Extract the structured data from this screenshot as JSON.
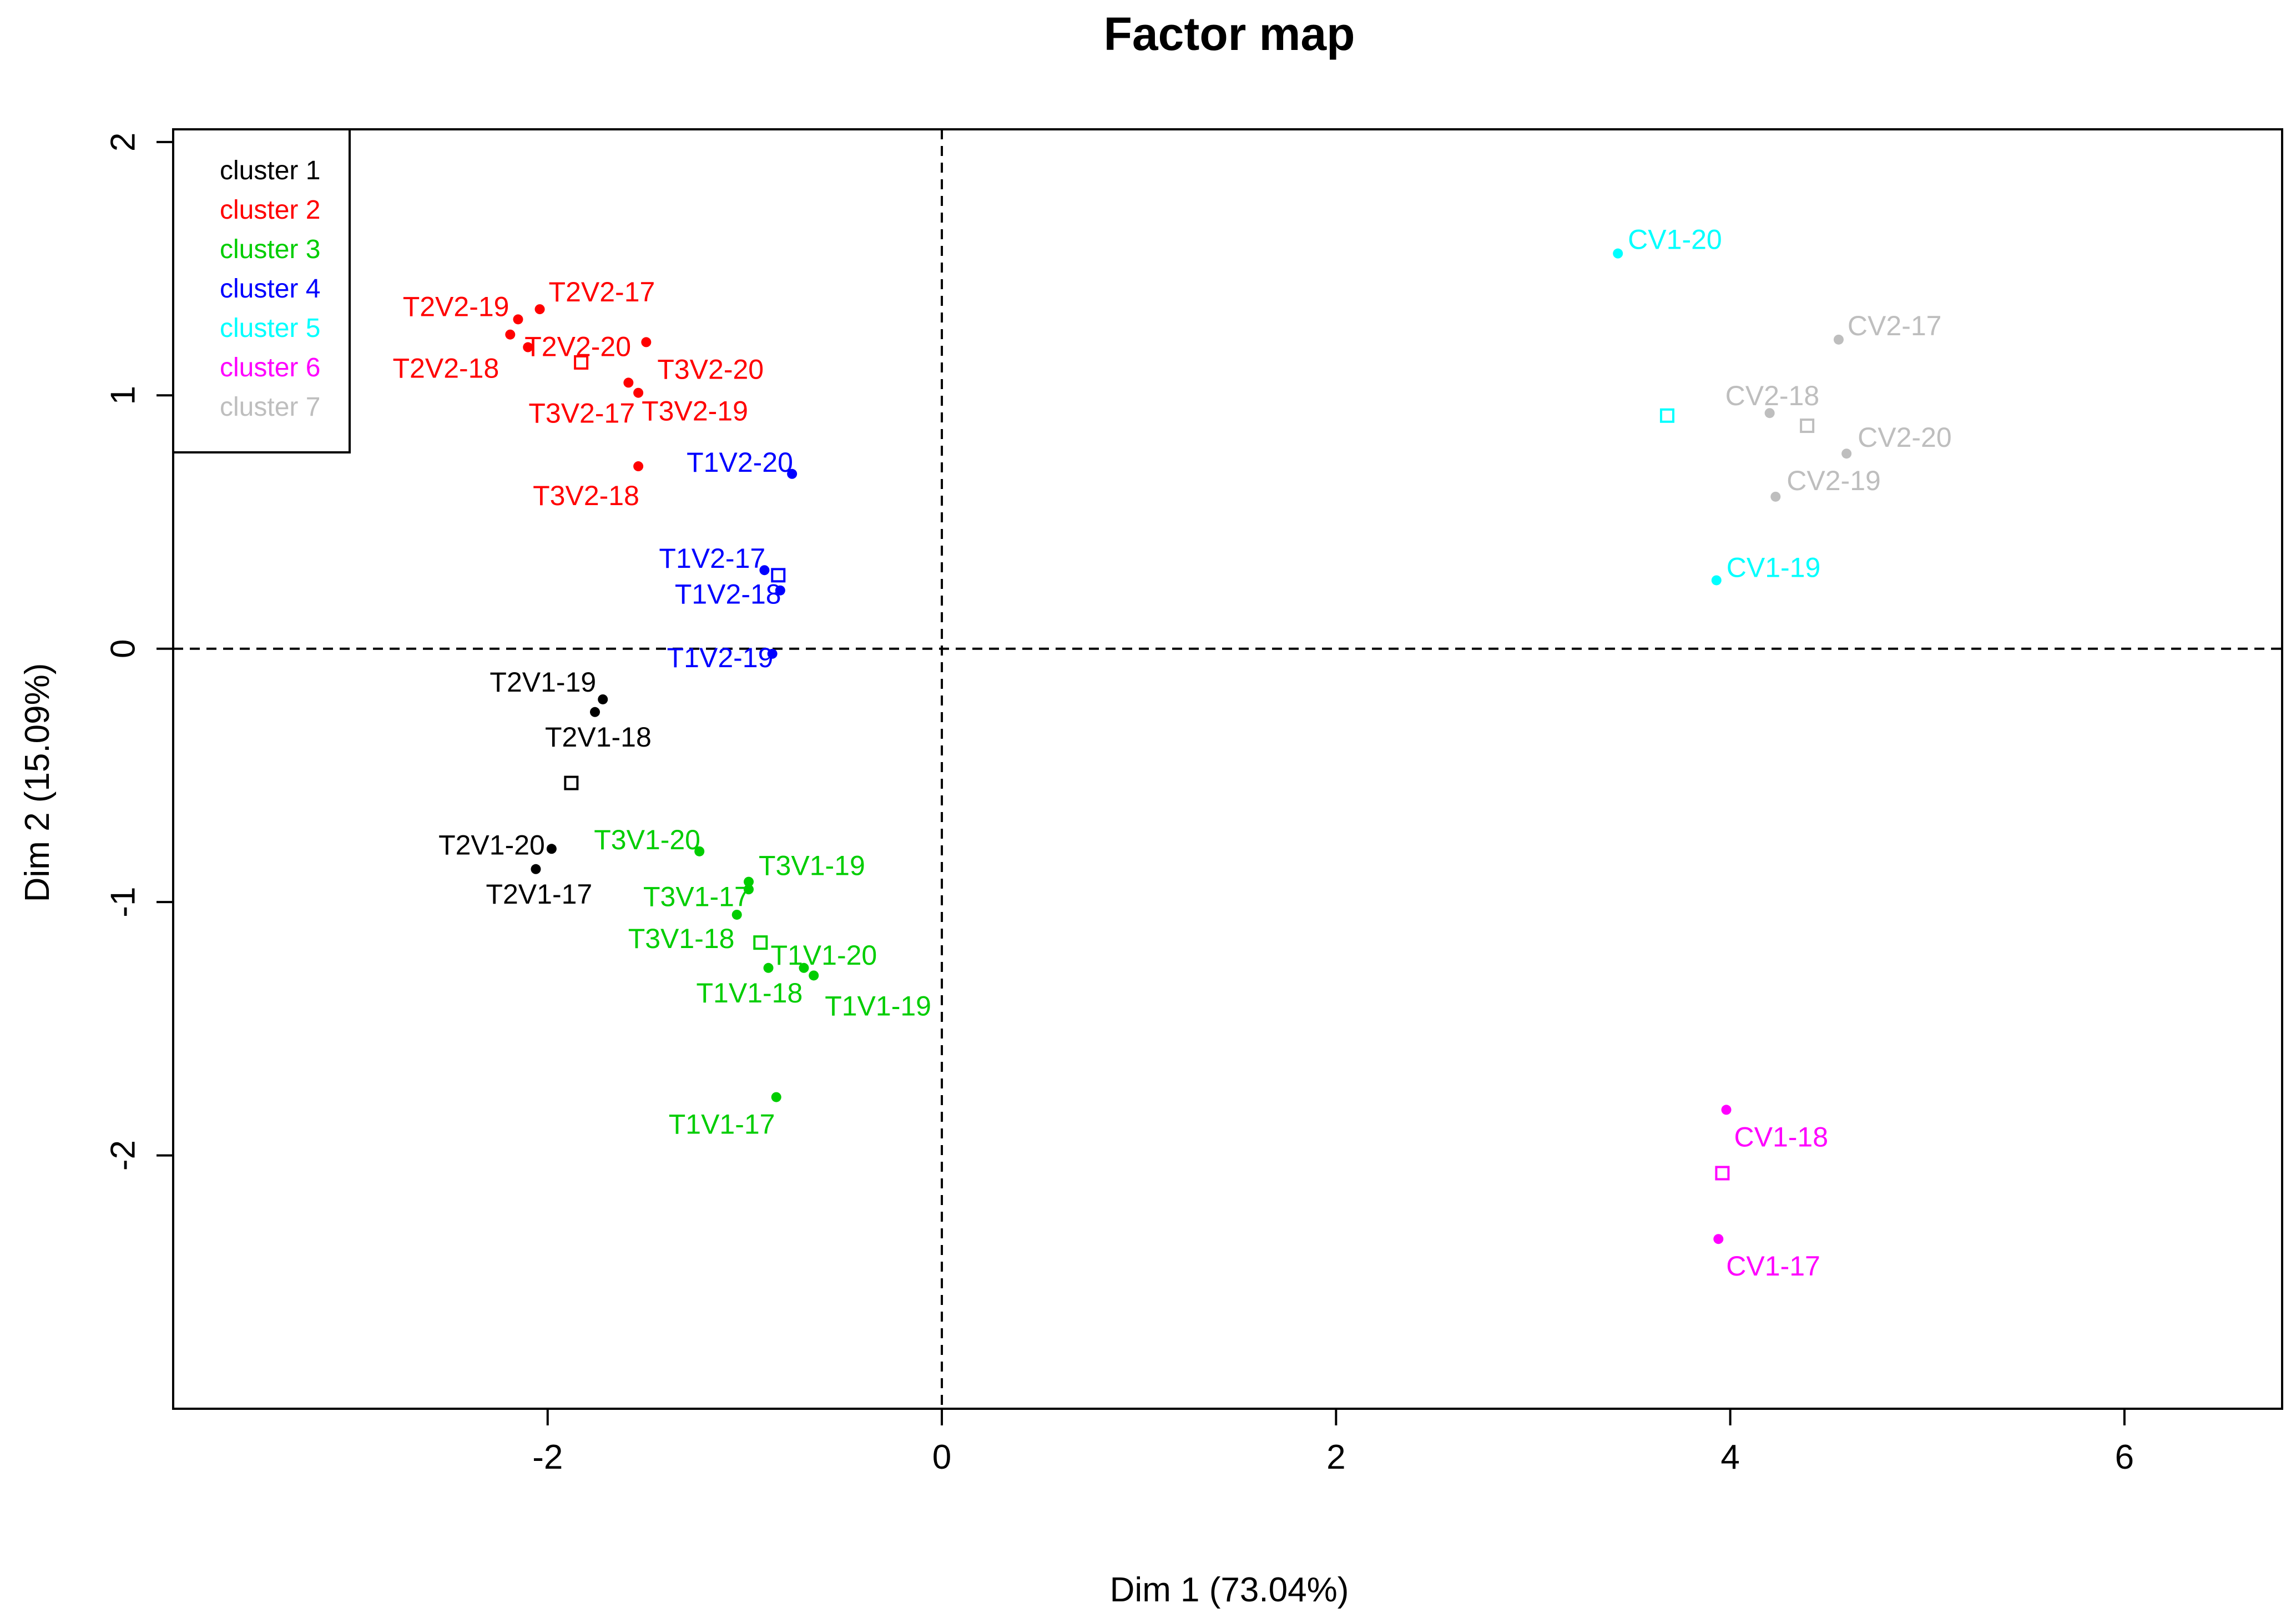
{
  "chart_data": {
    "type": "scatter",
    "title": "Factor map",
    "xlabel": "Dim 1 (73.04%)",
    "ylabel": "Dim 2 (15.09%)",
    "xlim": [
      -3.9,
      6.8
    ],
    "ylim": [
      -3.0,
      2.05
    ],
    "xticks": [
      -2,
      0,
      2,
      4,
      6
    ],
    "yticks": [
      -2,
      -1,
      0,
      1,
      2
    ],
    "xtick_labels": [
      "-2",
      "0",
      "2",
      "4",
      "6"
    ],
    "ytick_labels": [
      "-2",
      "-1",
      "0",
      "1",
      "2"
    ],
    "reference_lines": {
      "x": 0,
      "y": 0,
      "style": "dashed"
    },
    "grid": false,
    "legend_position": "top-left",
    "series": [
      {
        "name": "cluster 1",
        "color": "#000000",
        "points": [
          {
            "label": "T2V1-19",
            "x": -1.72,
            "y": -0.2
          },
          {
            "label": "T2V1-18",
            "x": -1.76,
            "y": -0.25
          },
          {
            "label": "T2V1-20",
            "x": -1.98,
            "y": -0.79
          },
          {
            "label": "T2V1-17",
            "x": -2.06,
            "y": -0.87
          }
        ],
        "center": {
          "x": -1.88,
          "y": -0.53
        }
      },
      {
        "name": "cluster 2",
        "color": "#ff0000",
        "points": [
          {
            "label": "T2V2-19",
            "x": -2.15,
            "y": 1.3
          },
          {
            "label": "T2V2-17",
            "x": -2.04,
            "y": 1.34
          },
          {
            "label": "T2V2-18",
            "x": -2.19,
            "y": 1.24
          },
          {
            "label": "T2V2-20",
            "x": -2.1,
            "y": 1.19
          },
          {
            "label": "T3V2-20",
            "x": -1.5,
            "y": 1.21
          },
          {
            "label": "T3V2-17",
            "x": -1.59,
            "y": 1.05
          },
          {
            "label": "T3V2-19",
            "x": -1.54,
            "y": 1.01
          },
          {
            "label": "T3V2-18",
            "x": -1.54,
            "y": 0.72
          }
        ],
        "center": {
          "x": -1.83,
          "y": 1.13
        }
      },
      {
        "name": "cluster 3",
        "color": "#00cd00",
        "points": [
          {
            "label": "T3V1-20",
            "x": -1.23,
            "y": -0.8
          },
          {
            "label": "T3V1-19",
            "x": -0.98,
            "y": -0.92
          },
          {
            "label": "T3V1-17",
            "x": -0.98,
            "y": -0.95
          },
          {
            "label": "T3V1-18",
            "x": -1.04,
            "y": -1.05
          },
          {
            "label": "T1V1-20",
            "x": -0.7,
            "y": -1.26
          },
          {
            "label": "T1V1-18",
            "x": -0.88,
            "y": -1.26
          },
          {
            "label": "T1V1-19",
            "x": -0.65,
            "y": -1.29
          },
          {
            "label": "T1V1-17",
            "x": -0.84,
            "y": -1.77
          }
        ],
        "center": {
          "x": -0.92,
          "y": -1.16
        }
      },
      {
        "name": "cluster 4",
        "color": "#0000ff",
        "points": [
          {
            "label": "T1V2-20",
            "x": -0.76,
            "y": 0.69
          },
          {
            "label": "T1V2-17",
            "x": -0.9,
            "y": 0.31
          },
          {
            "label": "T1V2-18",
            "x": -0.82,
            "y": 0.23
          },
          {
            "label": "T1V2-19",
            "x": -0.86,
            "y": -0.02
          }
        ],
        "center": {
          "x": -0.83,
          "y": 0.29
        }
      },
      {
        "name": "cluster 5",
        "color": "#00ffff",
        "points": [
          {
            "label": "CV1-20",
            "x": 3.43,
            "y": 1.56
          },
          {
            "label": "CV1-19",
            "x": 3.93,
            "y": 0.27
          }
        ],
        "center": {
          "x": 3.68,
          "y": 0.92
        }
      },
      {
        "name": "cluster 6",
        "color": "#ff00ff",
        "points": [
          {
            "label": "CV1-18",
            "x": 3.98,
            "y": -1.82
          },
          {
            "label": "CV1-17",
            "x": 3.94,
            "y": -2.33
          }
        ],
        "center": {
          "x": 3.96,
          "y": -2.07
        }
      },
      {
        "name": "cluster 7",
        "color": "#bebebe",
        "points": [
          {
            "label": "CV2-17",
            "x": 4.55,
            "y": 1.22
          },
          {
            "label": "CV2-18",
            "x": 4.2,
            "y": 0.93
          },
          {
            "label": "CV2-20",
            "x": 4.59,
            "y": 0.77
          },
          {
            "label": "CV2-19",
            "x": 4.23,
            "y": 0.6
          }
        ],
        "center": {
          "x": 4.39,
          "y": 0.88
        }
      }
    ]
  }
}
